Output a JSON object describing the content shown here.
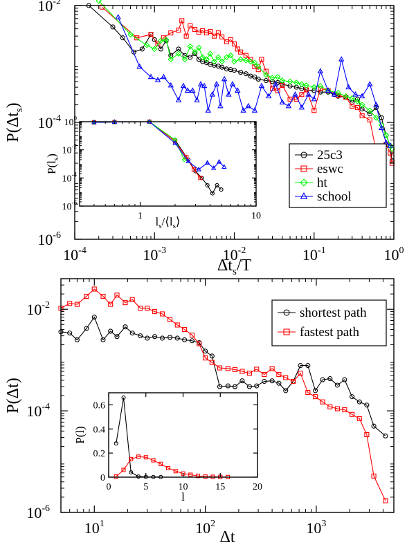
{
  "chart_data": [
    {
      "type": "line",
      "id": "top",
      "xlabel": "Δt",
      "xlabel_sub": "s",
      "xlabel_tail": "/T",
      "ylabel": "P(Δt",
      "ylabel_sub": "s",
      "ylabel_tail": ")",
      "xscale": "log",
      "yscale": "log",
      "xlim": [
        0.0001,
        1
      ],
      "ylim": [
        1e-06,
        0.01
      ],
      "x_ticks": [
        {
          "base": "10",
          "exp": "-4",
          "v": 0.0001
        },
        {
          "base": "10",
          "exp": "-3",
          "v": 0.001
        },
        {
          "base": "10",
          "exp": "-2",
          "v": 0.01
        },
        {
          "base": "10",
          "exp": "-1",
          "v": 0.1
        },
        {
          "base": "10",
          "exp": "0",
          "v": 1
        }
      ],
      "y_ticks": [
        {
          "base": "10",
          "exp": "-6",
          "v": 1e-06
        },
        {
          "base": "10",
          "exp": "-4",
          "v": 0.0001
        },
        {
          "base": "10",
          "exp": "-2",
          "v": 0.01
        }
      ],
      "legend_position": "right-center",
      "series": [
        {
          "name": "25c3",
          "color": "#000000",
          "marker": "circle",
          "x": [
            0.00015,
            0.0003,
            0.0004,
            0.00055,
            0.0007,
            0.0009,
            0.001,
            0.0012,
            0.0014,
            0.0016,
            0.002,
            0.0024,
            0.0028,
            0.0032,
            0.0036,
            0.004,
            0.0045,
            0.005,
            0.0056,
            0.0063,
            0.007,
            0.008,
            0.009,
            0.01,
            0.012,
            0.014,
            0.016,
            0.018,
            0.02,
            0.025,
            0.03,
            0.035,
            0.04,
            0.05,
            0.06,
            0.07,
            0.08,
            0.1,
            0.12,
            0.15,
            0.18,
            0.2,
            0.25,
            0.3,
            0.35,
            0.4,
            0.5,
            0.6,
            0.7,
            0.8,
            0.9,
            0.95
          ],
          "y": [
            0.01,
            0.0043,
            0.0028,
            0.0016,
            0.0018,
            0.0032,
            0.0026,
            0.0018,
            0.0025,
            0.0014,
            0.0018,
            0.0014,
            0.0013,
            0.0015,
            0.0012,
            0.0011,
            0.00105,
            0.00098,
            0.00095,
            0.00092,
            0.00088,
            0.00082,
            0.0008,
            0.00078,
            0.00072,
            0.00068,
            0.00062,
            0.0006,
            0.00055,
            0.00052,
            0.0005,
            0.00048,
            0.00045,
            0.00042,
            0.0004,
            0.00038,
            0.00036,
            0.00035,
            0.00033,
            0.00033,
            0.0003,
            0.00028,
            0.00027,
            0.00022,
            0.00025,
            0.00017,
            0.00014,
            0.00018,
            0.00012,
            6e-05,
            4e-05,
            2.2e-05
          ]
        },
        {
          "name": "eswc",
          "color": "#ff0000",
          "marker": "square",
          "x": [
            0.00022,
            0.0006,
            0.0009,
            0.0011,
            0.0013,
            0.0016,
            0.002,
            0.0022,
            0.0025,
            0.0028,
            0.0032,
            0.0036,
            0.004,
            0.0045,
            0.005,
            0.0056,
            0.0063,
            0.007,
            0.008,
            0.009,
            0.01,
            0.011,
            0.012,
            0.014,
            0.016,
            0.018,
            0.02,
            0.022,
            0.025,
            0.03,
            0.035,
            0.04,
            0.05,
            0.06,
            0.07,
            0.08,
            0.1,
            0.12,
            0.15,
            0.2,
            0.25,
            0.3,
            0.35,
            0.4,
            0.5,
            0.6,
            0.7,
            0.8,
            0.9,
            0.95
          ],
          "y": [
            0.0094,
            0.0028,
            0.0032,
            0.0022,
            0.0028,
            0.0034,
            0.0038,
            0.0055,
            0.003,
            0.0045,
            0.0039,
            0.0035,
            0.0037,
            0.0034,
            0.0036,
            0.003,
            0.0034,
            0.0029,
            0.0024,
            0.0026,
            0.0022,
            0.0018,
            0.0016,
            0.0014,
            0.0012,
            0.0009,
            0.0008,
            0.0012,
            0.00075,
            0.00038,
            0.00035,
            0.00043,
            0.00025,
            0.00025,
            0.0003,
            0.00036,
            0.00016,
            0.00038,
            0.00035,
            0.00029,
            0.00027,
            0.00019,
            0.00018,
            0.00013,
            0.00011,
            3.2e-05,
            3e-05,
            4.2e-05,
            3e-05,
            2e-05
          ]
        },
        {
          "name": "ht",
          "color": "#00ff00",
          "marker": "diamond",
          "x": [
            0.0002,
            0.0005,
            0.0008,
            0.001,
            0.0012,
            0.0014,
            0.0016,
            0.002,
            0.0024,
            0.0028,
            0.0032,
            0.0036,
            0.004,
            0.0045,
            0.005,
            0.0056,
            0.0063,
            0.007,
            0.008,
            0.009,
            0.01,
            0.012,
            0.014,
            0.016,
            0.018,
            0.02,
            0.025,
            0.03,
            0.035,
            0.04,
            0.05,
            0.06,
            0.07,
            0.08,
            0.1,
            0.12,
            0.15,
            0.2,
            0.25,
            0.3,
            0.35,
            0.4,
            0.5,
            0.6,
            0.7,
            0.8,
            0.9,
            0.95
          ],
          "y": [
            0.012,
            0.0032,
            0.0021,
            0.0018,
            0.0025,
            0.0026,
            0.0012,
            0.0015,
            0.0012,
            0.002,
            0.0016,
            0.0019,
            0.0013,
            0.0012,
            0.0015,
            0.0011,
            0.0013,
            0.0011,
            0.0013,
            0.0014,
            0.0011,
            0.0012,
            0.00115,
            0.0011,
            0.00105,
            0.0009,
            0.00065,
            0.00058,
            0.0006,
            0.00052,
            0.0005,
            0.00048,
            0.00045,
            0.00043,
            0.0004,
            0.00042,
            0.00035,
            0.00032,
            0.00028,
            0.00026,
            0.00023,
            0.0002,
            0.00016,
            0.00012,
            9e-05,
            6e-05,
            4e-05,
            3.5e-05
          ]
        },
        {
          "name": "school",
          "color": "#0000ff",
          "marker": "triangle",
          "x": [
            0.00035,
            0.00065,
            0.0009,
            0.0011,
            0.0013,
            0.0016,
            0.002,
            0.0023,
            0.0026,
            0.003,
            0.0034,
            0.0038,
            0.0042,
            0.0047,
            0.0053,
            0.006,
            0.0067,
            0.0075,
            0.0085,
            0.0095,
            0.011,
            0.013,
            0.015,
            0.018,
            0.022,
            0.027,
            0.033,
            0.04,
            0.048,
            0.058,
            0.07,
            0.085,
            0.1,
            0.12,
            0.15,
            0.18,
            0.22,
            0.27,
            0.33,
            0.4,
            0.5,
            0.6,
            0.7,
            0.8,
            0.9
          ],
          "y": [
            0.0063,
            0.0009,
            0.0006,
            0.00053,
            0.0006,
            0.00043,
            0.00024,
            0.00042,
            0.00035,
            0.00035,
            0.00024,
            0.00045,
            0.00042,
            0.00016,
            0.0003,
            0.00045,
            0.00019,
            0.00055,
            0.0003,
            0.00045,
            0.00035,
            0.00016,
            0.00019,
            0.00016,
            0.00042,
            0.00028,
            0.00045,
            0.00022,
            0.00019,
            0.0003,
            0.00018,
            0.0003,
            0.00025,
            0.00075,
            0.00035,
            0.0003,
            0.0012,
            0.0004,
            0.0003,
            0.00028,
            0.00045,
            0.0002,
            8e-05,
            4.5e-05,
            4e-05
          ]
        }
      ]
    },
    {
      "type": "line",
      "id": "top-inset",
      "xlabel": "l",
      "xlabel_sub": "s",
      "xlabel_tail": "/⟨l",
      "xlabel_sub2": "s",
      "xlabel_tail2": "⟩",
      "ylabel": "P(l",
      "ylabel_sub": "s",
      "ylabel_tail": ")",
      "xscale": "log",
      "yscale": "log",
      "xlim": [
        0.3,
        10
      ],
      "ylim": [
        1e-06,
        1
      ],
      "x_ticks": [
        {
          "label": "1",
          "v": 1
        },
        {
          "label": "10",
          "v": 10
        }
      ],
      "y_ticks": [
        {
          "base": "10",
          "exp": "-6",
          "v": 1e-06
        },
        {
          "base": "10",
          "exp": "-4",
          "v": 0.0001
        },
        {
          "base": "10",
          "exp": "-2",
          "v": 0.01
        },
        {
          "base": "10",
          "exp": "0",
          "v": 1
        }
      ],
      "series": [
        {
          "name": "25c3",
          "color": "#000000",
          "marker": "circle",
          "x": [
            0.4,
            0.6,
            1.2,
            2,
            2.6,
            3,
            3.4,
            3.8,
            4.2,
            4.6,
            5
          ],
          "y": [
            0.9,
            0.95,
            1,
            0.05,
            0.002,
            0.0003,
            0.0001,
            3e-05,
            8e-06,
            3e-05,
            1.5e-05
          ]
        },
        {
          "name": "eswc",
          "color": "#ff0000",
          "marker": "square",
          "x": [
            0.4,
            0.6,
            1.2,
            2,
            2.5,
            2.9,
            3.3
          ],
          "y": [
            0.9,
            0.95,
            1,
            0.04,
            0.003,
            0.0004,
            0.0001
          ]
        },
        {
          "name": "ht",
          "color": "#00ff00",
          "marker": "diamond",
          "x": [
            0.4,
            0.6,
            1.2,
            2,
            2.4
          ],
          "y": [
            0.9,
            0.95,
            1,
            0.05,
            0.002
          ]
        },
        {
          "name": "school",
          "color": "#0000ff",
          "marker": "triangle",
          "x": [
            0.4,
            0.6,
            1.2,
            2,
            2.6,
            3.2,
            3.8,
            4.3,
            4.8,
            5.3
          ],
          "y": [
            0.9,
            0.95,
            1,
            0.03,
            0.0015,
            0.0004,
            0.0012,
            0.0005,
            0.0014,
            0.0006
          ]
        }
      ]
    },
    {
      "type": "line",
      "id": "bottom",
      "xlabel": "Δt",
      "ylabel": "P(Δt)",
      "xscale": "log",
      "yscale": "log",
      "xlim": [
        5,
        5000
      ],
      "ylim": [
        1e-06,
        0.04
      ],
      "x_ticks": [
        {
          "base": "10",
          "exp": "1",
          "v": 10
        },
        {
          "base": "10",
          "exp": "2",
          "v": 100
        },
        {
          "base": "10",
          "exp": "3",
          "v": 1000
        }
      ],
      "y_ticks": [
        {
          "base": "10",
          "exp": "-6",
          "v": 1e-06
        },
        {
          "base": "10",
          "exp": "-4",
          "v": 0.0001
        },
        {
          "base": "10",
          "exp": "-2",
          "v": 0.01
        }
      ],
      "legend_position": "top-right",
      "series": [
        {
          "name": "shortest path",
          "color": "#000000",
          "marker": "circle",
          "x": [
            5,
            6,
            7,
            8.5,
            10,
            12,
            14,
            16,
            19,
            22,
            26,
            30,
            35,
            41,
            48,
            56,
            65,
            76,
            88,
            100,
            115,
            135,
            160,
            185,
            215,
            250,
            290,
            340,
            400,
            460,
            530,
            620,
            720,
            840,
            980,
            1140,
            1330,
            1550,
            1800,
            2100,
            2450,
            2850,
            3300,
            4200
          ],
          "y": [
            0.0036,
            0.0034,
            0.0025,
            0.0042,
            0.007,
            0.0025,
            0.0037,
            0.0029,
            0.0045,
            0.0034,
            0.003,
            0.0027,
            0.0029,
            0.0027,
            0.0028,
            0.0027,
            0.0025,
            0.0024,
            0.0022,
            0.0015,
            0.0012,
            0.0003,
            0.00031,
            0.0003,
            0.00039,
            0.0003,
            0.00031,
            0.00038,
            0.00039,
            0.00035,
            0.00025,
            0.00038,
            0.00078,
            0.00078,
            0.00025,
            0.00041,
            0.00043,
            0.00032,
            0.00041,
            0.00019,
            0.00015,
            0.00013,
            5e-05,
            3.2e-05
          ]
        },
        {
          "name": "fastest path",
          "color": "#ff0000",
          "marker": "square",
          "x": [
            5,
            6,
            7,
            8.5,
            10,
            12,
            14,
            16,
            19,
            22,
            26,
            30,
            35,
            41,
            48,
            56,
            65,
            76,
            88,
            100,
            115,
            135,
            160,
            185,
            215,
            250,
            290,
            340,
            400,
            460,
            530,
            620,
            720,
            840,
            980,
            1140,
            1330,
            1550,
            1800,
            2100,
            2450,
            2850,
            3300,
            4200
          ],
          "y": [
            0.0105,
            0.013,
            0.0125,
            0.018,
            0.025,
            0.018,
            0.0125,
            0.019,
            0.0135,
            0.0155,
            0.0105,
            0.0105,
            0.009,
            0.0081,
            0.0063,
            0.0049,
            0.004,
            0.0031,
            0.0021,
            0.0011,
            0.0009,
            0.0007,
            0.00068,
            0.00065,
            0.0006,
            0.00055,
            0.00066,
            0.00052,
            0.00068,
            0.00052,
            0.00045,
            0.00038,
            0.00055,
            0.00023,
            0.00019,
            0.00015,
            0.00012,
            0.00011,
            0.000105,
            8.5e-05,
            7e-05,
            3.4e-05,
            5.2e-06,
            1.7e-06
          ]
        }
      ]
    },
    {
      "type": "line",
      "id": "bottom-inset",
      "xlabel": "l",
      "ylabel": "P(l)",
      "xscale": "linear",
      "yscale": "linear",
      "xlim": [
        0,
        20
      ],
      "ylim": [
        0,
        0.7
      ],
      "x_ticks": [
        {
          "label": "0",
          "v": 0
        },
        {
          "label": "5",
          "v": 5
        },
        {
          "label": "10",
          "v": 10
        },
        {
          "label": "15",
          "v": 15
        },
        {
          "label": "20",
          "v": 20
        }
      ],
      "y_ticks": [
        {
          "label": "0",
          "v": 0
        },
        {
          "label": "0.2",
          "v": 0.2
        },
        {
          "label": "0.4",
          "v": 0.4
        },
        {
          "label": "0.6",
          "v": 0.6
        }
      ],
      "series": [
        {
          "name": "shortest path",
          "color": "#000000",
          "marker": "circle",
          "x": [
            1,
            2,
            3,
            4,
            5,
            6,
            7
          ],
          "y": [
            0.28,
            0.66,
            0.04,
            0.005,
            0.002,
            0.001,
            0.001
          ]
        },
        {
          "name": "fastest path",
          "color": "#ff0000",
          "marker": "square",
          "x": [
            1,
            2,
            3,
            4,
            5,
            6,
            7,
            8,
            9,
            10,
            11,
            12,
            13,
            14,
            15,
            16
          ],
          "y": [
            0.005,
            0.06,
            0.15,
            0.17,
            0.165,
            0.14,
            0.11,
            0.075,
            0.05,
            0.03,
            0.02,
            0.01,
            0.005,
            0.003,
            0.002,
            0.001
          ]
        }
      ]
    }
  ]
}
